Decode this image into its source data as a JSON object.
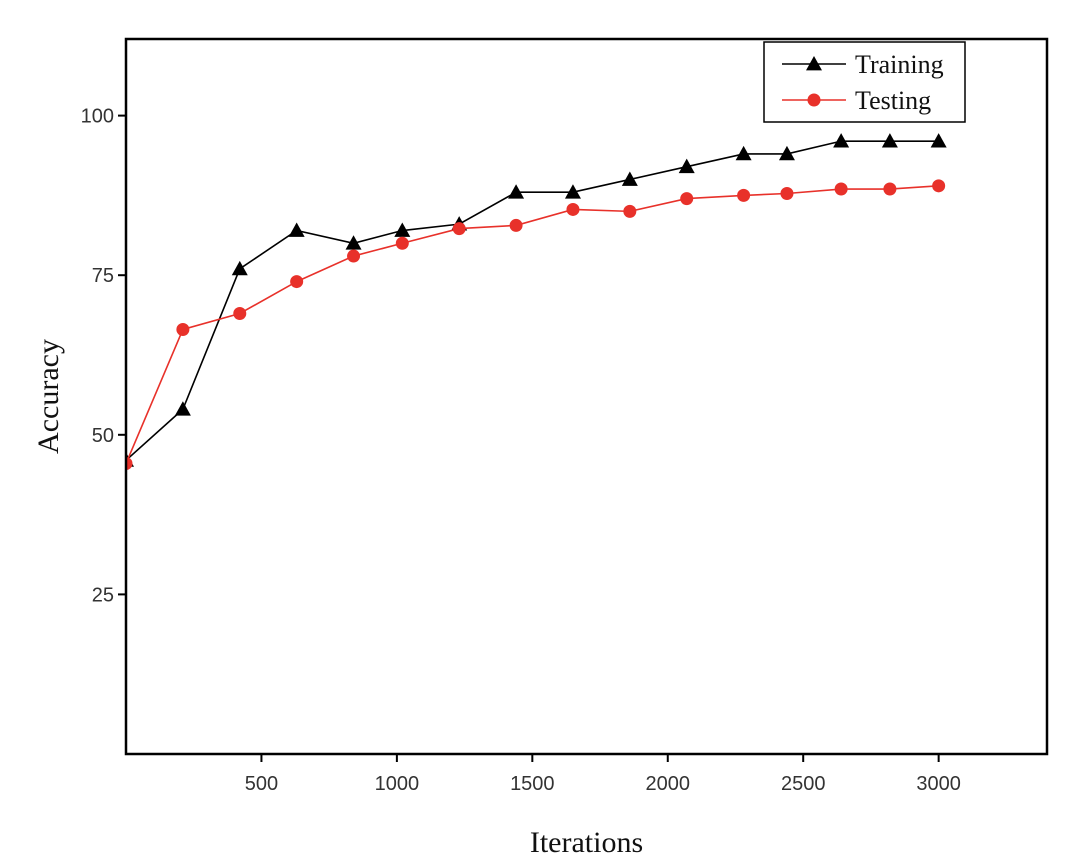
{
  "chart_data": {
    "type": "line",
    "title": "",
    "xlabel": "Iterations",
    "ylabel": "Accuracy",
    "xlim": [
      0,
      3400
    ],
    "ylim": [
      0,
      112
    ],
    "xticks": [
      500,
      1000,
      1500,
      2000,
      2500,
      3000
    ],
    "yticks": [
      25,
      50,
      75,
      100
    ],
    "grid": false,
    "legend_position": "top-right",
    "series": [
      {
        "name": "Training",
        "color": "#000000",
        "marker": "triangle",
        "x": [
          0,
          210,
          420,
          630,
          840,
          1020,
          1230,
          1440,
          1650,
          1860,
          2070,
          2280,
          2440,
          2640,
          2820,
          3000
        ],
        "y": [
          46,
          54,
          76,
          82,
          80,
          82,
          83,
          88,
          88,
          90,
          92,
          94,
          94,
          96,
          96,
          96
        ]
      },
      {
        "name": "Testing",
        "color": "#e8312a",
        "marker": "circle",
        "x": [
          0,
          210,
          420,
          630,
          840,
          1020,
          1230,
          1440,
          1650,
          1860,
          2070,
          2280,
          2440,
          2640,
          2820,
          3000
        ],
        "y": [
          45.5,
          66.5,
          69,
          74,
          78,
          80,
          82.3,
          82.8,
          85.3,
          85,
          87,
          87.5,
          87.8,
          88.5,
          88.5,
          89
        ]
      }
    ]
  }
}
